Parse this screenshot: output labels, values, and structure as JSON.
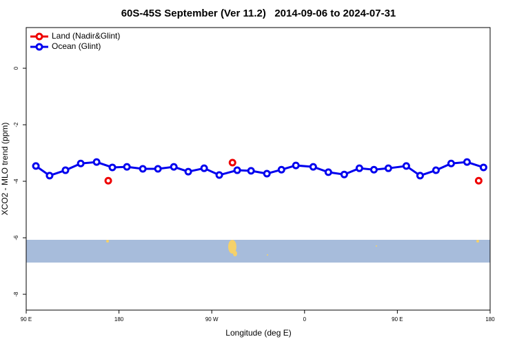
{
  "chart_data": {
    "type": "line",
    "title": "60S-45S September (Ver 11.2)   2014-09-06 to 2024-07-31",
    "x_label": "Longitude (deg E)",
    "y_label": "XCO2 - MLO trend (ppm)",
    "xlim": [
      90,
      540
    ],
    "ylim": [
      -8.56,
      1.44
    ],
    "xticks": [
      {
        "value": 90,
        "label": "90 E"
      },
      180,
      {
        "value": 270,
        "label": "90 W"
      },
      {
        "value": 360,
        "label": "0"
      },
      {
        "value": 450,
        "label": "90 E"
      },
      {
        "value": 540,
        "label": "180"
      }
    ],
    "yticks": [
      0,
      -2,
      -4,
      -6,
      -8
    ],
    "legend": "top-left",
    "series": [
      {
        "name": "Land (Nadir&Glint)",
        "color": "#ee0000",
        "x": [
          169.6,
          290.1,
          528.9
        ],
        "values": [
          -3.98,
          -3.34,
          -3.98
        ]
      },
      {
        "name": "Ocean (Glint)",
        "color": "#0000ee",
        "x": [
          99.4,
          112.7,
          128.1,
          142.9,
          158.3,
          173.6,
          187.7,
          203.1,
          217.8,
          233.2,
          247.2,
          262.6,
          277.3,
          294.7,
          308.1,
          323.5,
          337.6,
          351.6,
          368.4,
          383.1,
          398.5,
          413.2,
          427.3,
          441.3,
          458.7,
          472.1,
          487.5,
          502.2,
          517.6,
          533.6
        ],
        "values": [
          -3.46,
          -3.8,
          -3.61,
          -3.37,
          -3.32,
          -3.51,
          -3.49,
          -3.56,
          -3.56,
          -3.49,
          -3.66,
          -3.54,
          -3.78,
          -3.61,
          -3.63,
          -3.73,
          -3.59,
          -3.44,
          -3.49,
          -3.68,
          -3.76,
          -3.54,
          -3.59,
          -3.54,
          -3.46,
          -3.8,
          -3.61,
          -3.37,
          -3.32,
          -3.51
        ]
      }
    ]
  }
}
